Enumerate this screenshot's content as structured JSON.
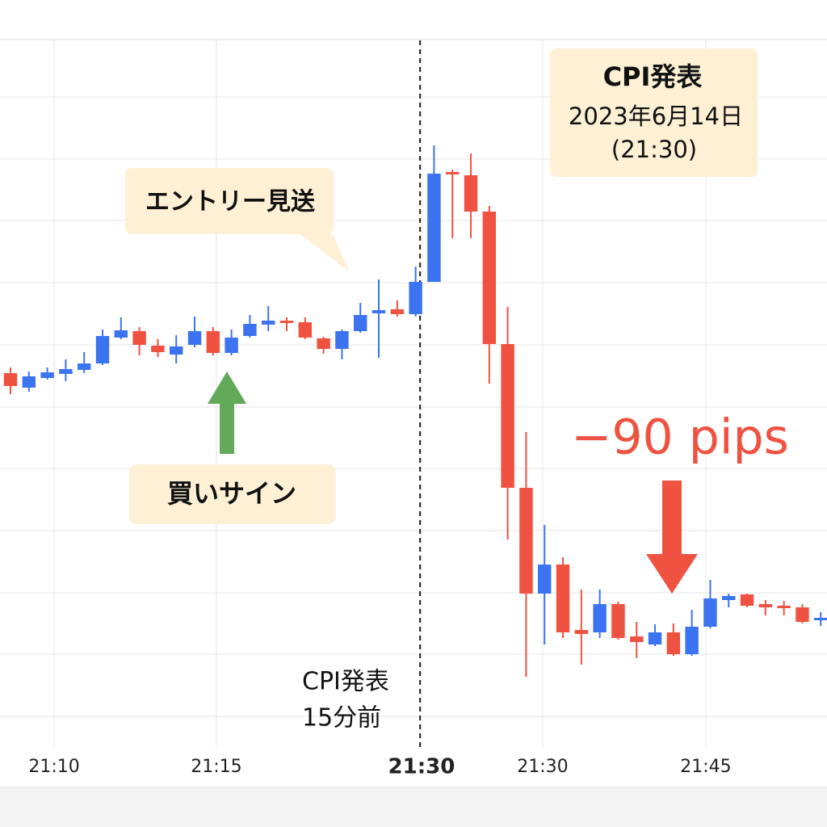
{
  "chart_data": {
    "type": "candlestick",
    "up_color": "#3b73f0",
    "down_color": "#ef5240",
    "xlim": [
      -0.57,
      44.34
    ],
    "ylim": [
      0,
      925
    ],
    "yticks": [
      88,
      165,
      241,
      318,
      395,
      471,
      548,
      625,
      702,
      778,
      855
    ],
    "xticks": [
      {
        "value": 2.37,
        "label": "21:10"
      },
      {
        "value": 11.18,
        "label": "21:15"
      },
      {
        "value": 22.32,
        "label": "21:30"
      },
      {
        "value": 28.9,
        "label": "21:30"
      },
      {
        "value": 37.76,
        "label": "21:45"
      }
    ],
    "bold_xtick": 2,
    "grid": true,
    "event_line_x": 22.24,
    "open": [
      513,
      495,
      507,
      512,
      517,
      525,
      557,
      565,
      547,
      536,
      548,
      565,
      538,
      559,
      573,
      578,
      576,
      556,
      543,
      565,
      587,
      592,
      586,
      626,
      762,
      758,
      713,
      549,
      371,
      240,
      276,
      195,
      192,
      227,
      187,
      177,
      192,
      165,
      199,
      232,
      239,
      227,
      225,
      223,
      207
    ],
    "high": [
      520,
      515,
      520,
      530,
      539,
      567,
      582,
      570,
      555,
      560,
      583,
      570,
      567,
      585,
      596,
      582,
      582,
      558,
      567,
      600,
      629,
      603,
      645,
      795,
      765,
      785,
      720,
      595,
      440,
      325,
      285,
      245,
      245,
      230,
      205,
      202,
      203,
      220,
      257,
      240,
      240,
      232,
      231,
      227,
      217
    ],
    "low": [
      487,
      490,
      505,
      503,
      513,
      523,
      555,
      535,
      533,
      525,
      545,
      535,
      535,
      557,
      565,
      565,
      555,
      537,
      530,
      563,
      532,
      583,
      583,
      626,
      680,
      680,
      500,
      307,
      137,
      177,
      185,
      152,
      185,
      183,
      160,
      175,
      163,
      163,
      197,
      223,
      223,
      213,
      213,
      203,
      200
    ],
    "close": [
      497,
      509,
      514,
      518,
      525,
      559,
      566,
      548,
      539,
      546,
      565,
      538,
      557,
      574,
      578,
      575,
      557,
      543,
      565,
      585,
      591,
      586,
      626,
      760,
      759,
      713,
      549,
      371,
      240,
      276,
      192,
      190,
      227,
      185,
      180,
      192,
      165,
      199,
      234,
      237,
      225,
      223,
      222,
      205,
      210
    ],
    "annotations": {
      "cpi_box": {
        "title": "CPI発表",
        "date": "2023年6月14日",
        "time": "(21:30)"
      },
      "skip": "エントリー見送",
      "buy": "買いサイン",
      "drop": "−90 pips",
      "pre_event": [
        "CPI発表",
        "15分前"
      ]
    }
  }
}
